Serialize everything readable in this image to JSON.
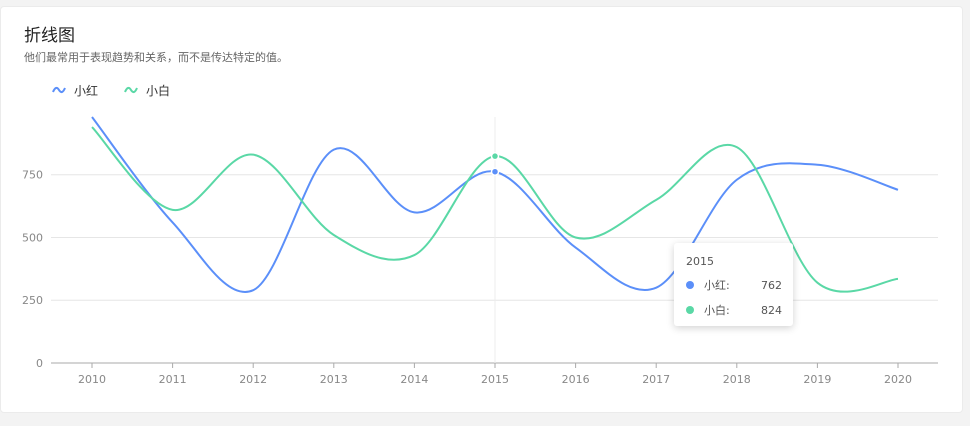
{
  "header": {
    "title": "折线图",
    "subtitle": "他们最常用于表现趋势和关系，而不是传达特定的值。"
  },
  "colors": {
    "series1": "#5b8ff9",
    "series2": "#5ad8a6"
  },
  "tooltip": {
    "title": "2015",
    "rows": [
      {
        "name": "小红:",
        "value": "762"
      },
      {
        "name": "小白:",
        "value": "824"
      }
    ]
  },
  "chart_data": {
    "type": "line",
    "title": "折线图",
    "subtitle": "他们最常用于表现趋势和关系，而不是传达特定的值。",
    "x": [
      "2010",
      "2011",
      "2012",
      "2013",
      "2014",
      "2015",
      "2016",
      "2017",
      "2018",
      "2019",
      "2020"
    ],
    "series": [
      {
        "name": "小红",
        "values": [
          980,
          560,
          290,
          850,
          600,
          762,
          460,
          300,
          730,
          790,
          690
        ]
      },
      {
        "name": "小白",
        "values": [
          940,
          610,
          830,
          510,
          430,
          824,
          500,
          650,
          860,
          320,
          335
        ]
      }
    ],
    "ylim": [
      0,
      980
    ],
    "yticks": [
      0,
      250,
      500,
      750
    ],
    "grid": true,
    "legend": "top-left",
    "smooth": true,
    "highlight_x": "2015"
  }
}
